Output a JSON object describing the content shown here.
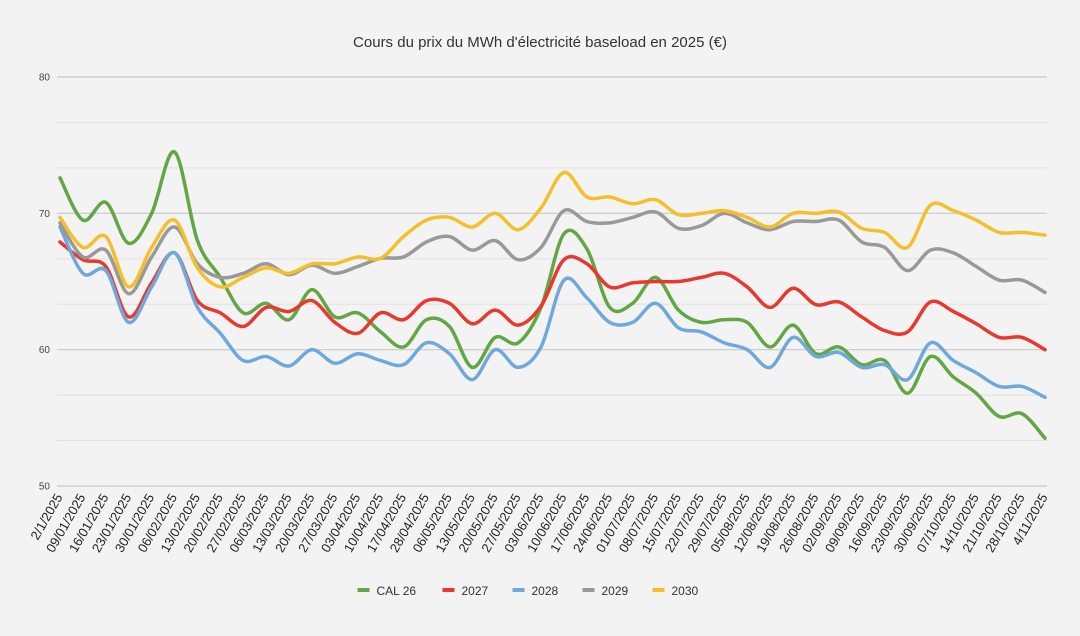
{
  "chart_data": {
    "type": "line",
    "title": "Cours du prix du MWh d'électricité baseload en 2025 (€)",
    "xlabel": "",
    "ylabel": "",
    "ylim": [
      50,
      80
    ],
    "yticks": [
      50,
      60,
      70,
      80
    ],
    "grid": true,
    "legend": "bottom",
    "categories": [
      "2/1/2025",
      "09/01/2025",
      "16/01/2025",
      "23/01/2025",
      "30/01/2025",
      "06/02/2025",
      "13/02/2025",
      "20/02/2025",
      "27/02/2025",
      "06/03/2025",
      "13/03/2025",
      "20/03/2025",
      "27/03/2025",
      "03/04/2025",
      "10/04/2025",
      "17/04/2025",
      "28/04/2025",
      "06/05/2025",
      "13/05/2025",
      "20/05/2025",
      "27/05/2025",
      "03/06/2025",
      "10/06/2025",
      "17/06/2025",
      "24/06/2025",
      "01/07/2025",
      "08/07/2025",
      "15/07/2025",
      "22/07/2025",
      "29/07/2025",
      "05/08/2025",
      "12/08/2025",
      "19/08/2025",
      "26/08/2025",
      "02/09/2025",
      "09/09/2025",
      "16/09/2025",
      "23/09/2025",
      "30/09/2025",
      "07/10/2025",
      "14/10/2025",
      "21/10/2025",
      "28/10/2025",
      "4/11/2025"
    ],
    "series": [
      {
        "name": "CAL 26",
        "color": "#62a744",
        "values": [
          72.6,
          69.5,
          70.8,
          67.8,
          70.0,
          74.5,
          68.0,
          65.3,
          62.7,
          63.4,
          62.2,
          64.4,
          62.4,
          62.7,
          61.3,
          60.2,
          62.2,
          61.7,
          58.7,
          60.9,
          60.5,
          63.1,
          68.5,
          67.4,
          63.1,
          63.4,
          65.3,
          62.9,
          62.0,
          62.2,
          62.0,
          60.2,
          61.8,
          59.7,
          60.2,
          58.9,
          59.2,
          56.8,
          59.5,
          58.0,
          56.8,
          55.1,
          55.3,
          53.5
        ]
      },
      {
        "name": "2027",
        "color": "#e8392e",
        "values": [
          67.9,
          66.6,
          66.1,
          62.4,
          64.9,
          67.1,
          63.6,
          62.7,
          61.7,
          63.1,
          62.8,
          63.6,
          62.0,
          61.2,
          62.7,
          62.2,
          63.6,
          63.4,
          61.9,
          62.9,
          61.8,
          63.2,
          66.6,
          66.3,
          64.6,
          64.9,
          65.0,
          65.0,
          65.3,
          65.6,
          64.6,
          63.1,
          64.5,
          63.3,
          63.5,
          62.4,
          61.4,
          61.3,
          63.5,
          62.8,
          61.9,
          60.9,
          60.9,
          60.0
        ]
      },
      {
        "name": "2028",
        "color": "#6fa8dc",
        "values": [
          69.0,
          65.6,
          65.8,
          62.0,
          64.6,
          67.1,
          63.1,
          61.2,
          59.2,
          59.5,
          58.8,
          60.0,
          59.0,
          59.7,
          59.2,
          58.9,
          60.5,
          59.7,
          57.8,
          60.0,
          58.7,
          60.2,
          65.1,
          63.8,
          62.0,
          62.0,
          63.4,
          61.6,
          61.3,
          60.5,
          60.0,
          58.7,
          60.9,
          59.5,
          59.8,
          58.7,
          58.9,
          57.8,
          60.5,
          59.2,
          58.3,
          57.3,
          57.3,
          56.5
        ]
      },
      {
        "name": "2029",
        "color": "#999999",
        "values": [
          69.3,
          66.8,
          67.3,
          64.1,
          66.8,
          69.0,
          66.3,
          65.3,
          65.6,
          66.3,
          65.5,
          66.2,
          65.6,
          66.1,
          66.7,
          66.8,
          67.9,
          68.3,
          67.3,
          68.0,
          66.6,
          67.5,
          70.2,
          69.4,
          69.3,
          69.7,
          70.1,
          68.9,
          69.1,
          70.0,
          69.3,
          68.8,
          69.4,
          69.4,
          69.5,
          67.9,
          67.5,
          65.8,
          67.3,
          67.1,
          66.1,
          65.1,
          65.1,
          64.2
        ]
      },
      {
        "name": "2030",
        "color": "#f4bf2a",
        "values": [
          69.7,
          67.5,
          68.3,
          64.6,
          67.5,
          69.5,
          66.0,
          64.6,
          65.3,
          66.0,
          65.6,
          66.3,
          66.3,
          66.8,
          66.7,
          68.3,
          69.5,
          69.7,
          69.0,
          70.0,
          68.8,
          70.4,
          73.0,
          71.2,
          71.2,
          70.7,
          71.0,
          69.9,
          70.0,
          70.2,
          69.7,
          69.0,
          70.0,
          70.0,
          70.1,
          68.9,
          68.6,
          67.5,
          70.6,
          70.2,
          69.5,
          68.6,
          68.6,
          68.4
        ]
      }
    ]
  }
}
